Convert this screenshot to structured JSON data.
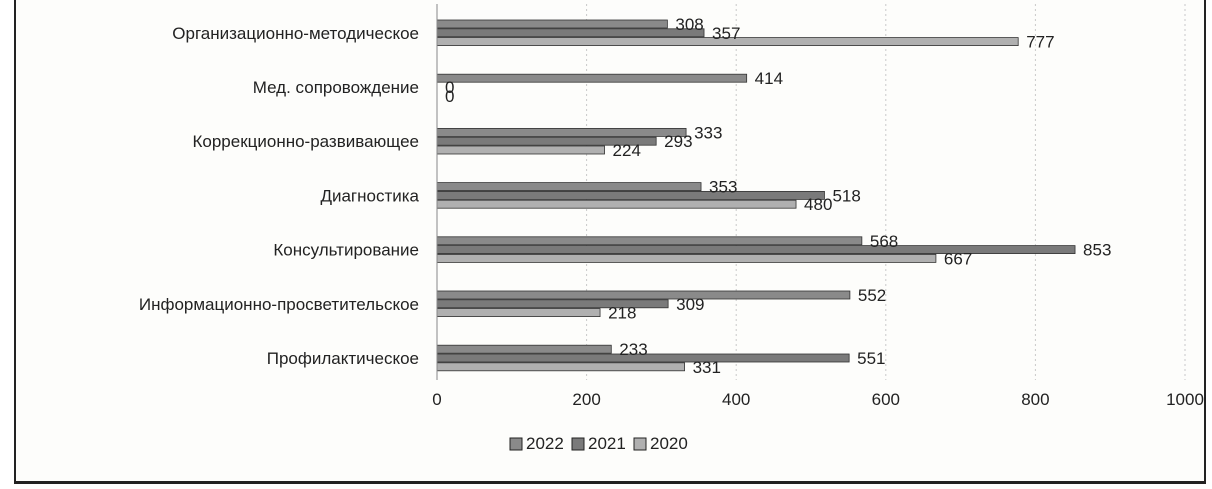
{
  "chart_data": {
    "type": "bar",
    "orientation": "horizontal",
    "categories": [
      "Организационно-методическое",
      "Мед. сопровождение",
      "Коррекционно-развивающее",
      "Диагностика",
      "Консультирование",
      "Информационно-просветительское",
      "Профилактическое"
    ],
    "series": [
      {
        "name": "2022",
        "values": [
          308,
          414,
          333,
          353,
          568,
          552,
          233
        ],
        "color": "#8a8a8a"
      },
      {
        "name": "2021",
        "values": [
          357,
          0,
          293,
          518,
          853,
          309,
          551
        ],
        "color": "#7a7a7a"
      },
      {
        "name": "2020",
        "values": [
          777,
          0,
          224,
          480,
          667,
          218,
          331
        ],
        "color": "#b0b0b0"
      }
    ],
    "xlim": [
      0,
      1000
    ],
    "xticks": [
      0,
      200,
      400,
      600,
      800,
      1000
    ],
    "grid": true,
    "legend_position": "bottom"
  }
}
